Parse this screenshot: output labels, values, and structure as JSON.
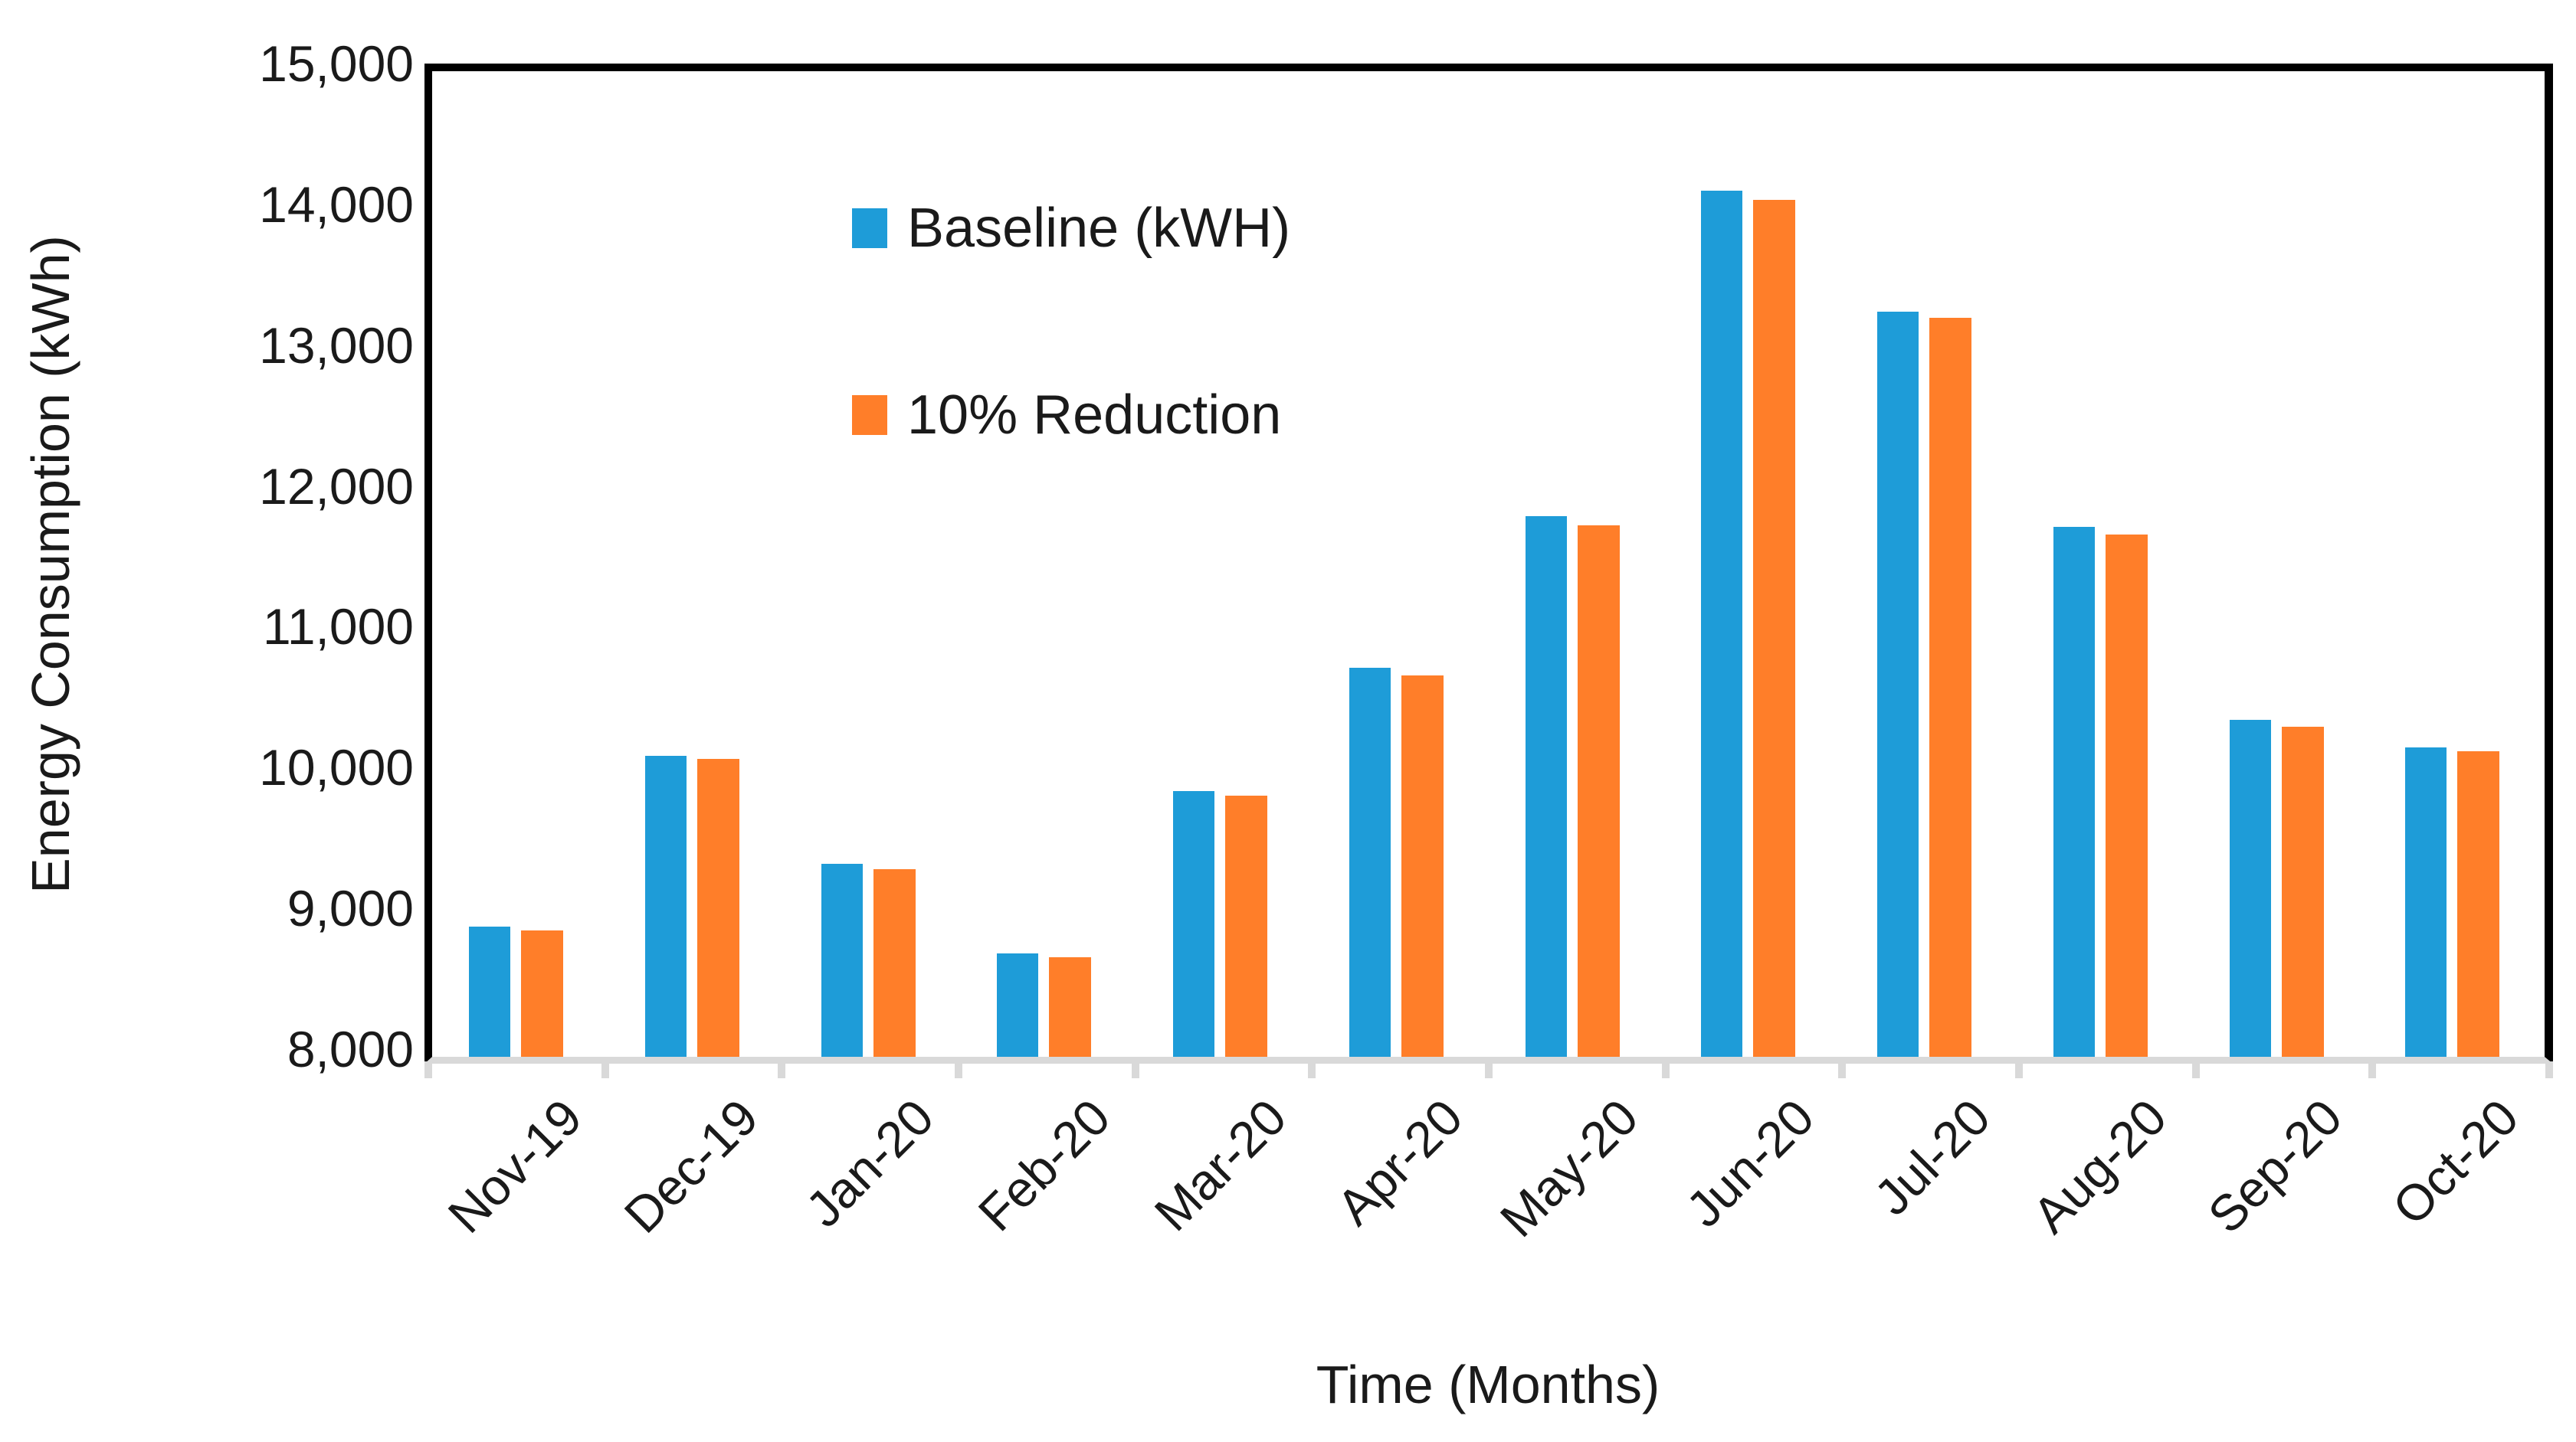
{
  "chart_data": {
    "type": "bar",
    "title": "",
    "xlabel": "Time (Months)",
    "ylabel": "Energy Consumption (kWh)",
    "ylim": [
      8000,
      15000
    ],
    "ytick_step": 1000,
    "ytick_labels": [
      "8,000",
      "9,000",
      "10,000",
      "11,000",
      "12,000",
      "13,000",
      "14,000",
      "15,000"
    ],
    "grid": false,
    "legend_position": "inside-top-left",
    "categories": [
      "Nov-19",
      "Dec-19",
      "Jan-20",
      "Feb-20",
      "Mar-20",
      "Apr-20",
      "May-20",
      "Jun-20",
      "Jul-20",
      "Aug-20",
      "Sep-20",
      "Oct-20"
    ],
    "series": [
      {
        "name": "Baseline (kWH)",
        "color": "#1E9CD8",
        "values": [
          8925,
          10140,
          9370,
          8735,
          9890,
          10765,
          11840,
          14150,
          13290,
          11765,
          10395,
          10195
        ]
      },
      {
        "name": "10% Reduction",
        "color": "#FF7E29",
        "values": [
          8895,
          10115,
          9335,
          8705,
          9855,
          10710,
          11775,
          14085,
          13250,
          11710,
          10345,
          10170
        ]
      }
    ],
    "axis_colors": {
      "frame": "#000000",
      "bottom_axis": "#D9D9D9",
      "tick_stub": "#D9D9D9"
    }
  }
}
